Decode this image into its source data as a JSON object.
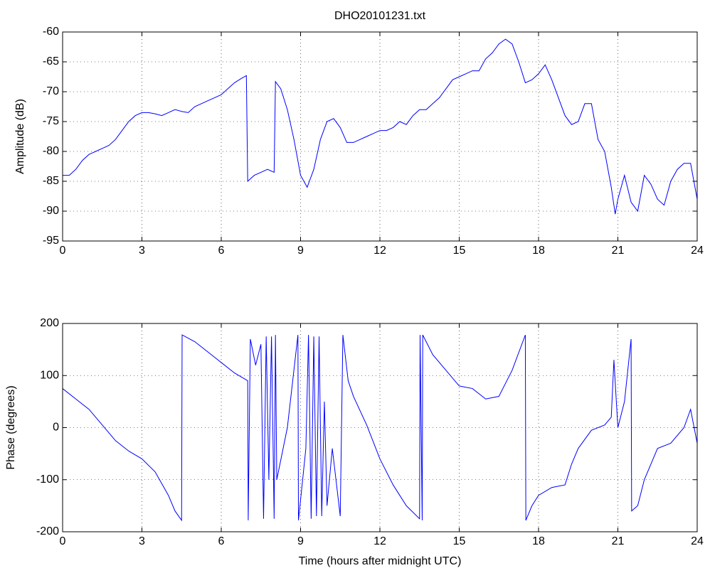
{
  "chart_data": [
    {
      "type": "line",
      "title": "DHO20101231.txt",
      "ylabel": "Amplitude (dB)",
      "color": "#0000ff",
      "grid": true,
      "xlim": [
        0,
        24
      ],
      "xticks": [
        0,
        3,
        6,
        9,
        12,
        15,
        18,
        21,
        24
      ],
      "ylim": [
        -95,
        -60
      ],
      "yticks": [
        -95,
        -90,
        -85,
        -80,
        -75,
        -70,
        -65,
        -60
      ],
      "x": [
        0,
        0.25,
        0.5,
        0.75,
        1,
        1.25,
        1.5,
        1.75,
        2,
        2.25,
        2.5,
        2.75,
        3,
        3.25,
        3.5,
        3.75,
        4,
        4.25,
        4.5,
        4.75,
        5,
        5.25,
        5.5,
        5.75,
        6,
        6.25,
        6.5,
        6.75,
        6.95,
        7.0,
        7.25,
        7.5,
        7.75,
        8.0,
        8.05,
        8.25,
        8.5,
        8.75,
        9,
        9.25,
        9.5,
        9.75,
        10,
        10.25,
        10.5,
        10.75,
        11,
        11.25,
        11.5,
        11.75,
        12,
        12.25,
        12.5,
        12.75,
        13,
        13.25,
        13.5,
        13.75,
        14,
        14.25,
        14.5,
        14.75,
        15,
        15.25,
        15.5,
        15.75,
        16,
        16.25,
        16.5,
        16.75,
        17,
        17.25,
        17.5,
        17.75,
        18,
        18.25,
        18.5,
        18.75,
        19,
        19.25,
        19.5,
        19.75,
        20,
        20.25,
        20.5,
        20.75,
        20.9,
        21,
        21.25,
        21.5,
        21.75,
        22,
        22.25,
        22.5,
        22.75,
        23,
        23.25,
        23.5,
        23.75,
        24
      ],
      "values": [
        -84,
        -84,
        -83,
        -81.5,
        -80.5,
        -80,
        -79.5,
        -79,
        -78,
        -76.5,
        -75,
        -74,
        -73.5,
        -73.5,
        -73.7,
        -74,
        -73.5,
        -73,
        -73.3,
        -73.5,
        -72.5,
        -72,
        -71.5,
        -71,
        -70.5,
        -69.5,
        -68.5,
        -67.8,
        -67.3,
        -85,
        -84,
        -83.5,
        -83,
        -83.5,
        -68.3,
        -69.5,
        -73,
        -78,
        -84,
        -86,
        -83,
        -78,
        -75,
        -74.5,
        -76,
        -78.5,
        -78.5,
        -78,
        -77.5,
        -77,
        -76.5,
        -76.5,
        -76,
        -75,
        -75.5,
        -74,
        -73,
        -73,
        -72,
        -71,
        -69.5,
        -68,
        -67.5,
        -67,
        -66.5,
        -66.5,
        -64.5,
        -63.5,
        -62,
        -61.2,
        -62,
        -65,
        -68.5,
        -68,
        -67,
        -65.5,
        -68,
        -71,
        -74,
        -75.5,
        -75,
        -72,
        -72,
        -78,
        -80,
        -86,
        -90.5,
        -88,
        -84,
        -88.5,
        -90,
        -84,
        -85.5,
        -88,
        -89,
        -85,
        -83,
        -82,
        -82,
        -88
      ]
    },
    {
      "type": "line",
      "xlabel": "Time (hours after midnight UTC)",
      "ylabel": "Phase (degrees)",
      "color": "#0000ff",
      "grid": true,
      "xlim": [
        0,
        24
      ],
      "xticks": [
        0,
        3,
        6,
        9,
        12,
        15,
        18,
        21,
        24
      ],
      "ylim": [
        -200,
        200
      ],
      "yticks": [
        -200,
        -100,
        0,
        100,
        200
      ],
      "x": [
        0,
        0.5,
        1,
        1.5,
        2,
        2.5,
        3,
        3.5,
        4,
        4.25,
        4.5,
        4.52,
        5,
        5.5,
        6,
        6.5,
        7,
        7.02,
        7.1,
        7.3,
        7.5,
        7.6,
        7.7,
        7.8,
        7.9,
        8,
        8.05,
        8.1,
        8.5,
        8.9,
        8.92,
        9.2,
        9.3,
        9.4,
        9.5,
        9.6,
        9.7,
        9.8,
        9.9,
        10,
        10.2,
        10.5,
        10.6,
        10.8,
        11,
        11.5,
        12,
        12.5,
        13,
        13.5,
        13.52,
        13.6,
        13.62,
        14,
        14.5,
        15,
        15.5,
        16,
        16.5,
        17,
        17.5,
        17.52,
        17.75,
        18,
        18.5,
        19,
        19.25,
        19.5,
        20,
        20.5,
        20.75,
        20.85,
        21,
        21.25,
        21.5,
        21.52,
        21.75,
        22,
        22.5,
        23,
        23.5,
        23.75,
        24
      ],
      "values": [
        75,
        55,
        35,
        5,
        -25,
        -45,
        -60,
        -85,
        -130,
        -160,
        -178,
        178,
        165,
        145,
        125,
        105,
        90,
        -178,
        170,
        120,
        160,
        -175,
        175,
        -100,
        175,
        -175,
        178,
        -100,
        0,
        178,
        -178,
        -40,
        178,
        -175,
        175,
        -170,
        175,
        -170,
        50,
        -150,
        -40,
        -170,
        178,
        90,
        60,
        5,
        -60,
        -110,
        -150,
        -175,
        178,
        -178,
        178,
        140,
        110,
        80,
        75,
        55,
        60,
        110,
        178,
        -178,
        -150,
        -130,
        -115,
        -110,
        -70,
        -40,
        -5,
        5,
        20,
        130,
        0,
        50,
        170,
        -160,
        -150,
        -100,
        -40,
        -30,
        0,
        35,
        -30
      ]
    }
  ]
}
